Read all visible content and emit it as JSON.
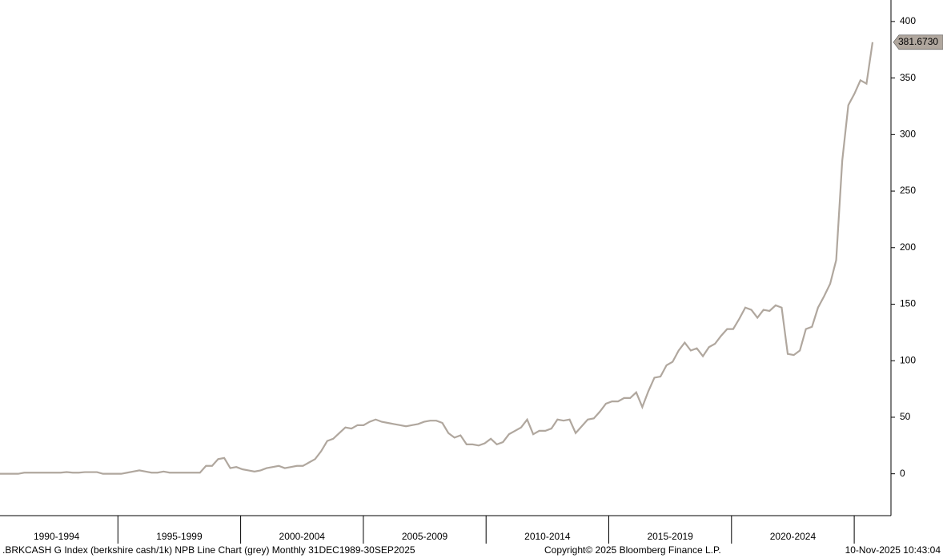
{
  "chart_data": {
    "type": "line",
    "series": [
      {
        "name": ".BRKCASH G Index",
        "color": "#b0a79e",
        "values": [
          0,
          0,
          0,
          0,
          1,
          1,
          1,
          1,
          1,
          1,
          1,
          1.5,
          1,
          1,
          1.5,
          1.5,
          1.5,
          0,
          0,
          0,
          0,
          1,
          2,
          3,
          2,
          1,
          1,
          2,
          1,
          1,
          1,
          1,
          1,
          1,
          7,
          7,
          13,
          14,
          5,
          6,
          4,
          3,
          2,
          3,
          5,
          6,
          7,
          5,
          6,
          7,
          7,
          10,
          13,
          20,
          29,
          31,
          36,
          41,
          40,
          43,
          43,
          46,
          48,
          46,
          45,
          44,
          43,
          42,
          43,
          44,
          46,
          47,
          47,
          45,
          36,
          32,
          34,
          26,
          26,
          25,
          27,
          31,
          26,
          28,
          35,
          38,
          41,
          48,
          35,
          38,
          38,
          40,
          48,
          47,
          48,
          36,
          42,
          48,
          49,
          55,
          62,
          64,
          64,
          67,
          67,
          72,
          59,
          73,
          85,
          86,
          96,
          99,
          109,
          116,
          109,
          111,
          104,
          112,
          115,
          122,
          128,
          128,
          137,
          147,
          145,
          138,
          145,
          144,
          149,
          147,
          106,
          105,
          109,
          128,
          130,
          147,
          157,
          168,
          189,
          277,
          326,
          336,
          348,
          345,
          381.673
        ]
      }
    ],
    "last_value": {
      "value": 381.673,
      "label": "381.6730"
    },
    "periods": [
      "1990-1994",
      "1995-1999",
      "2000-2004",
      "2005-2009",
      "2010-2014",
      "2015-2019",
      "2020-2024"
    ],
    "ylim": [
      -37,
      419
    ],
    "yticks": [
      0,
      50,
      100,
      150,
      200,
      250,
      300,
      350,
      400
    ],
    "footer": {
      "description": ".BRKCASH G Index (berkshire cash/1k) NPB Line Chart (grey) Monthly 31DEC1989-30SEP2025",
      "copyright": "Copyright© 2025 Bloomberg Finance L.P.",
      "timestamp": "10-Nov-2025 10:43:04"
    }
  }
}
